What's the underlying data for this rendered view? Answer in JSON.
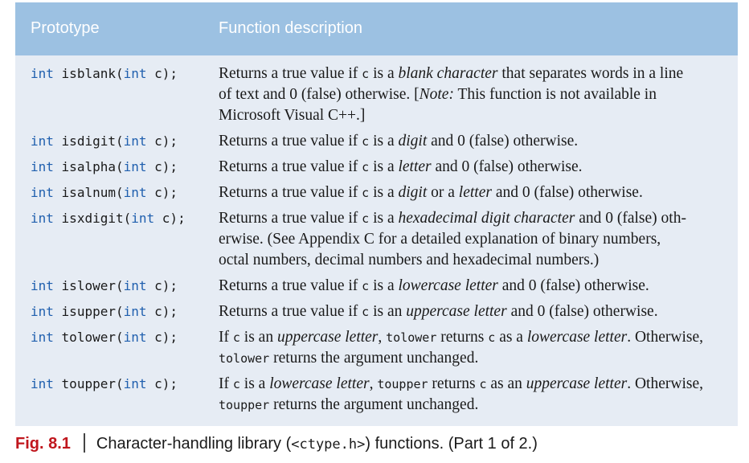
{
  "header": {
    "col1": "Prototype",
    "col2": "Function description"
  },
  "rows": [
    {
      "kw1": "int",
      "name": "isblank(",
      "kw2": "int",
      "param": "c);",
      "lines": [
        [
          "Returns a true value if ",
          {
            "m": "c"
          },
          " is a ",
          {
            "i": "blank character"
          },
          " that separates words in a line"
        ],
        [
          "of text and 0 (false) otherwise. [",
          {
            "i": "Note:"
          },
          " This function is not available in"
        ],
        [
          "Microsoft Visual C++.]"
        ]
      ]
    },
    {
      "kw1": "int",
      "name": "isdigit(",
      "kw2": "int",
      "param": "c);",
      "lines": [
        [
          "Returns a true value if ",
          {
            "m": "c"
          },
          " is a ",
          {
            "i": "digit"
          },
          " and 0 (false) otherwise."
        ]
      ]
    },
    {
      "kw1": "int",
      "name": "isalpha(",
      "kw2": "int",
      "param": "c);",
      "lines": [
        [
          "Returns a true value if ",
          {
            "m": "c"
          },
          " is a ",
          {
            "i": "letter"
          },
          " and 0 (false) otherwise."
        ]
      ]
    },
    {
      "kw1": "int",
      "name": "isalnum(",
      "kw2": "int",
      "param": "c);",
      "lines": [
        [
          "Returns a true value if ",
          {
            "m": "c"
          },
          " is a ",
          {
            "i": "digit"
          },
          " or a ",
          {
            "i": "letter"
          },
          " and 0 (false) otherwise."
        ]
      ]
    },
    {
      "kw1": "int",
      "name": "isxdigit(",
      "kw2": "int",
      "param": "c);",
      "lines": [
        [
          "Returns a true value if ",
          {
            "m": "c"
          },
          " is a ",
          {
            "i": "hexadecimal digit character"
          },
          " and 0 (false) oth-"
        ],
        [
          "erwise. (See Appendix C for a detailed explanation of binary numbers,"
        ],
        [
          "octal numbers, decimal numbers and hexadecimal numbers.)"
        ]
      ]
    },
    {
      "kw1": "int",
      "name": "islower(",
      "kw2": "int",
      "param": "c);",
      "lines": [
        [
          "Returns a true value if ",
          {
            "m": "c"
          },
          " is a ",
          {
            "i": "lowercase letter"
          },
          " and 0 (false) otherwise."
        ]
      ]
    },
    {
      "kw1": "int",
      "name": "isupper(",
      "kw2": "int",
      "param": "c);",
      "lines": [
        [
          "Returns a true value if ",
          {
            "m": "c"
          },
          " is an ",
          {
            "i": "uppercase letter"
          },
          " and 0 (false) otherwise."
        ]
      ]
    },
    {
      "kw1": "int",
      "name": "tolower(",
      "kw2": "int",
      "param": "c);",
      "lines": [
        [
          "If ",
          {
            "m": "c"
          },
          " is an ",
          {
            "i": "uppercase letter"
          },
          ", ",
          {
            "m": "tolower"
          },
          " returns ",
          {
            "m": "c"
          },
          " as a ",
          {
            "i": "lowercase letter"
          },
          ". Otherwise,"
        ],
        [
          {
            "m": "tolower"
          },
          " returns the argument unchanged."
        ]
      ]
    },
    {
      "kw1": "int",
      "name": "toupper(",
      "kw2": "int",
      "param": "c);",
      "lines": [
        [
          "If ",
          {
            "m": "c"
          },
          " is a ",
          {
            "i": "lowercase letter"
          },
          ", ",
          {
            "m": "toupper"
          },
          " returns ",
          {
            "m": "c"
          },
          " as an ",
          {
            "i": "uppercase letter"
          },
          ". Otherwise,"
        ],
        [
          {
            "m": "toupper"
          },
          " returns the argument unchanged."
        ]
      ]
    }
  ],
  "caption": {
    "label": "Fig. 8.1",
    "text_before": "Character-handling library (",
    "code": "<ctype.h>",
    "text_after": ") functions. (Part 1 of 2.)"
  },
  "colors": {
    "header_bg": "#9cc1e2",
    "body_bg": "#e6ecf4",
    "keyword": "#1f5fae",
    "figure_label": "#c0161d"
  }
}
